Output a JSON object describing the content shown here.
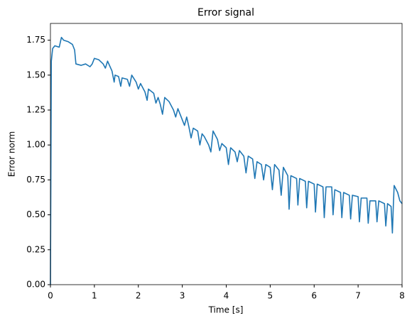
{
  "chart_data": {
    "type": "line",
    "title": "Error signal",
    "x_label": "Time [s]",
    "y_label": "Error norm",
    "xlim": [
      0,
      8
    ],
    "ylim": [
      0,
      1.87
    ],
    "xticks": [
      0,
      1,
      2,
      3,
      4,
      5,
      6,
      7,
      8
    ],
    "yticks": [
      {
        "value": 0,
        "label": "0.00"
      },
      {
        "value": 0.25,
        "label": "0.25"
      },
      {
        "value": 0.5,
        "label": "0.50"
      },
      {
        "value": 0.75,
        "label": "0.75"
      },
      {
        "value": 1,
        "label": "1.00"
      },
      {
        "value": 1.25,
        "label": "1.25"
      },
      {
        "value": 1.5,
        "label": "1.50"
      },
      {
        "value": 1.75,
        "label": "1.75"
      }
    ],
    "grid": false,
    "series": [
      {
        "color": "#1f77b4",
        "x": [
          0,
          0.02,
          0.05,
          0.1,
          0.2,
          0.25,
          0.3,
          0.4,
          0.5,
          0.55,
          0.58,
          0.7,
          0.8,
          0.9,
          0.95,
          1.0,
          1.1,
          1.2,
          1.25,
          1.3,
          1.4,
          1.45,
          1.47,
          1.55,
          1.6,
          1.63,
          1.75,
          1.8,
          1.85,
          1.95,
          2.0,
          2.05,
          2.15,
          2.2,
          2.23,
          2.35,
          2.4,
          2.45,
          2.5,
          2.55,
          2.6,
          2.7,
          2.8,
          2.85,
          2.9,
          3.0,
          3.05,
          3.1,
          3.15,
          3.2,
          3.25,
          3.35,
          3.4,
          3.45,
          3.5,
          3.6,
          3.65,
          3.7,
          3.8,
          3.85,
          3.9,
          4.0,
          4.05,
          4.1,
          4.2,
          4.25,
          4.3,
          4.4,
          4.45,
          4.5,
          4.6,
          4.65,
          4.7,
          4.8,
          4.85,
          4.9,
          5.0,
          5.05,
          5.1,
          5.2,
          5.25,
          5.3,
          5.4,
          5.43,
          5.47,
          5.6,
          5.63,
          5.67,
          5.8,
          5.83,
          5.87,
          6.0,
          6.03,
          6.07,
          6.2,
          6.23,
          6.27,
          6.4,
          6.43,
          6.47,
          6.6,
          6.63,
          6.67,
          6.8,
          6.83,
          6.87,
          7.0,
          7.03,
          7.07,
          7.2,
          7.23,
          7.27,
          7.4,
          7.43,
          7.47,
          7.6,
          7.63,
          7.67,
          7.75,
          7.78,
          7.8,
          7.82,
          7.9,
          7.95,
          8.0
        ],
        "values": [
          0,
          1.6,
          1.69,
          1.71,
          1.7,
          1.77,
          1.75,
          1.74,
          1.72,
          1.68,
          1.58,
          1.57,
          1.58,
          1.56,
          1.58,
          1.62,
          1.61,
          1.58,
          1.55,
          1.6,
          1.53,
          1.45,
          1.5,
          1.49,
          1.42,
          1.48,
          1.47,
          1.42,
          1.5,
          1.45,
          1.4,
          1.44,
          1.38,
          1.32,
          1.4,
          1.37,
          1.3,
          1.34,
          1.29,
          1.22,
          1.34,
          1.31,
          1.25,
          1.2,
          1.26,
          1.18,
          1.14,
          1.2,
          1.13,
          1.05,
          1.12,
          1.1,
          1.0,
          1.08,
          1.06,
          1.0,
          0.95,
          1.1,
          1.04,
          0.96,
          1.01,
          0.98,
          0.86,
          0.98,
          0.95,
          0.88,
          0.96,
          0.92,
          0.8,
          0.92,
          0.9,
          0.76,
          0.88,
          0.86,
          0.75,
          0.86,
          0.84,
          0.68,
          0.86,
          0.82,
          0.64,
          0.84,
          0.78,
          0.54,
          0.78,
          0.76,
          0.57,
          0.76,
          0.74,
          0.55,
          0.74,
          0.72,
          0.52,
          0.72,
          0.7,
          0.48,
          0.7,
          0.7,
          0.5,
          0.68,
          0.66,
          0.48,
          0.66,
          0.64,
          0.47,
          0.64,
          0.63,
          0.45,
          0.62,
          0.62,
          0.44,
          0.6,
          0.6,
          0.45,
          0.6,
          0.58,
          0.42,
          0.58,
          0.56,
          0.37,
          0.55,
          0.71,
          0.66,
          0.6,
          0.58
        ]
      }
    ]
  }
}
